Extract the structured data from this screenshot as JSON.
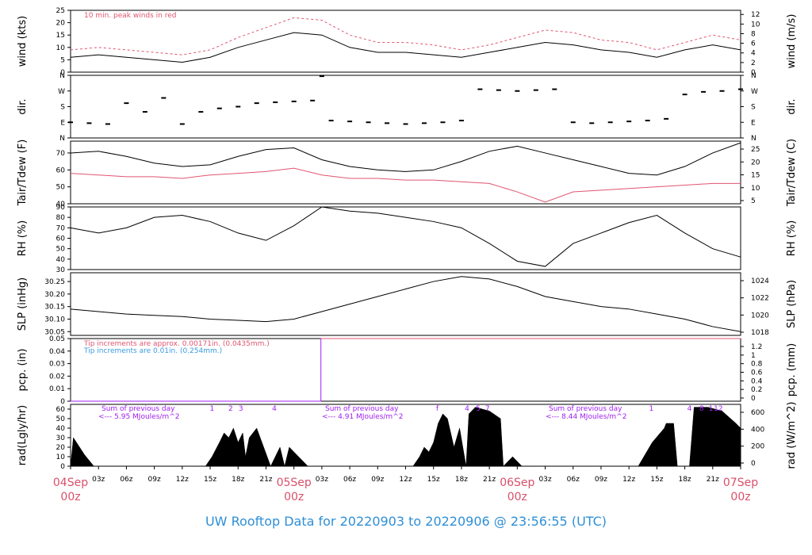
{
  "title": "UW Rooftop Data for 20220903  to  20220906 @ 23:56:55  (UTC)",
  "colors": {
    "red": "#e05570",
    "blue": "#3a9be0",
    "purple": "#a020f0",
    "date": "#d9506a",
    "footer": "#2e8fd6"
  },
  "x_axis": {
    "hour_ticks": [
      "03z",
      "06z",
      "09z",
      "12z",
      "15z",
      "18z",
      "21z",
      "03z",
      "06z",
      "09z",
      "12z",
      "15z",
      "18z",
      "21z",
      "03z",
      "06z",
      "09z",
      "12z",
      "15z",
      "18z",
      "21z"
    ],
    "date_labels": [
      {
        "date": "04Sep",
        "hour": "00z"
      },
      {
        "date": "05Sep",
        "hour": "00z"
      },
      {
        "date": "06Sep",
        "hour": "00z"
      },
      {
        "date": "07Sep",
        "hour": "00z"
      }
    ]
  },
  "chart_data": [
    {
      "type": "line",
      "key": "wind",
      "ylabel": "wind (kts)",
      "ylabel2": "wind (m/s)",
      "ylim": [
        0,
        25
      ],
      "yticks": [
        0,
        5,
        10,
        15,
        20,
        25
      ],
      "y2lim": [
        0,
        12.86
      ],
      "y2ticks": [
        0,
        2,
        4,
        6,
        8,
        10,
        12
      ],
      "annotations": [
        "10 min. peak winds in red"
      ],
      "series": [
        {
          "color": "#000",
          "x": [
            0,
            3,
            6,
            9,
            12,
            15,
            18,
            21,
            24,
            27,
            30,
            33,
            36,
            39,
            42,
            45,
            48,
            51,
            54,
            57,
            60,
            63,
            66,
            69,
            72
          ],
          "values": [
            6,
            7,
            6,
            5,
            4,
            6,
            10,
            13,
            16,
            15,
            10,
            8,
            8,
            7,
            6,
            8,
            10,
            12,
            11,
            9,
            8,
            6,
            9,
            11,
            9
          ]
        },
        {
          "color": "#e05570",
          "dashed": true,
          "x": [
            0,
            3,
            6,
            9,
            12,
            15,
            18,
            21,
            24,
            27,
            30,
            33,
            36,
            39,
            42,
            45,
            48,
            51,
            54,
            57,
            60,
            63,
            66,
            69,
            72
          ],
          "values": [
            9,
            10,
            9,
            8,
            7,
            9,
            14,
            18,
            22,
            21,
            15,
            12,
            12,
            11,
            9,
            11,
            14,
            17,
            16,
            13,
            12,
            9,
            12,
            15,
            13
          ]
        }
      ]
    },
    {
      "type": "scatter",
      "key": "dir",
      "ylabel": "dir.",
      "ylabel2": "dir.",
      "ylim": [
        0,
        360
      ],
      "ytick_values": [
        0,
        90,
        180,
        270,
        360
      ],
      "ytick_labels": [
        "N",
        "E",
        "S",
        "W",
        "N"
      ],
      "series": [
        {
          "color": "#000",
          "x": [
            0,
            2,
            4,
            6,
            8,
            10,
            12,
            14,
            16,
            18,
            20,
            22,
            24,
            26,
            27,
            28,
            30,
            32,
            34,
            36,
            38,
            40,
            42,
            44,
            46,
            48,
            50,
            52,
            54,
            56,
            58,
            60,
            62,
            64,
            66,
            68,
            70,
            72
          ],
          "values": [
            90,
            85,
            80,
            200,
            150,
            230,
            80,
            150,
            170,
            180,
            200,
            205,
            210,
            215,
            355,
            100,
            95,
            90,
            85,
            80,
            85,
            90,
            100,
            280,
            275,
            270,
            275,
            280,
            90,
            85,
            90,
            95,
            100,
            110,
            250,
            265,
            270,
            280
          ]
        }
      ]
    },
    {
      "type": "line",
      "key": "temp",
      "ylabel": "Tair/Tdew (F)",
      "ylabel2": "Tair/Tdew (C)",
      "ylim": [
        40,
        77
      ],
      "yticks": [
        40,
        50,
        60,
        70
      ],
      "y2ticks": [
        5,
        10,
        15,
        20,
        25
      ],
      "series": [
        {
          "color": "#000",
          "x": [
            0,
            3,
            6,
            9,
            12,
            15,
            18,
            21,
            24,
            27,
            30,
            33,
            36,
            39,
            42,
            45,
            48,
            51,
            54,
            57,
            60,
            63,
            66,
            69,
            72
          ],
          "values": [
            70,
            71,
            68,
            64,
            62,
            63,
            68,
            72,
            73,
            66,
            62,
            60,
            59,
            60,
            65,
            71,
            74,
            70,
            66,
            62,
            58,
            57,
            62,
            70,
            76
          ]
        },
        {
          "color": "#e05570",
          "x": [
            0,
            3,
            6,
            9,
            12,
            15,
            18,
            21,
            24,
            27,
            30,
            33,
            36,
            39,
            42,
            45,
            48,
            51,
            54,
            57,
            60,
            63,
            66,
            69,
            72
          ],
          "values": [
            58,
            57,
            56,
            56,
            55,
            57,
            58,
            59,
            61,
            57,
            55,
            55,
            54,
            54,
            53,
            52,
            47,
            41,
            47,
            48,
            49,
            50,
            51,
            52,
            52
          ]
        }
      ]
    },
    {
      "type": "line",
      "key": "rh",
      "ylabel": "RH (%)",
      "ylabel2": "RH (%)",
      "ylim": [
        30,
        90
      ],
      "yticks": [
        30,
        40,
        50,
        60,
        70,
        80,
        90
      ],
      "series": [
        {
          "color": "#000",
          "x": [
            0,
            3,
            6,
            9,
            12,
            15,
            18,
            21,
            24,
            27,
            30,
            33,
            36,
            39,
            42,
            45,
            48,
            51,
            54,
            57,
            60,
            63,
            66,
            69,
            72
          ],
          "values": [
            70,
            65,
            70,
            80,
            82,
            76,
            65,
            58,
            72,
            90,
            86,
            84,
            80,
            76,
            70,
            55,
            38,
            33,
            55,
            65,
            75,
            82,
            65,
            50,
            42
          ]
        }
      ]
    },
    {
      "type": "line",
      "key": "slp",
      "ylabel": "SLP (inHg)",
      "ylabel2": "SLP (hPa)",
      "ylim": [
        30.035,
        30.285
      ],
      "yticks": [
        30.05,
        30.1,
        30.15,
        30.2,
        30.25
      ],
      "y2ticks": [
        1018,
        1020,
        1022,
        1024
      ],
      "series": [
        {
          "color": "#000",
          "x": [
            0,
            3,
            6,
            9,
            12,
            15,
            18,
            21,
            24,
            27,
            30,
            33,
            36,
            39,
            42,
            45,
            48,
            51,
            54,
            57,
            60,
            63,
            66,
            69,
            72
          ],
          "values": [
            30.14,
            30.13,
            30.12,
            30.115,
            30.11,
            30.1,
            30.095,
            30.09,
            30.1,
            30.13,
            30.16,
            30.19,
            30.22,
            30.25,
            30.27,
            30.26,
            30.23,
            30.19,
            30.17,
            30.15,
            30.14,
            30.12,
            30.1,
            30.07,
            30.05
          ]
        }
      ]
    },
    {
      "type": "line",
      "key": "pcp",
      "ylabel": "pcp. (in)",
      "ylabel2": "pcp. (mm)",
      "ylim": [
        0,
        0.05
      ],
      "yticks": [
        0,
        0.01,
        0.02,
        0.03,
        0.04,
        0.05
      ],
      "y2ticks": [
        0,
        0.2,
        0.4,
        0.6,
        0.8,
        1.0,
        1.2
      ],
      "annotations": [
        "Tip increments are approx. 0.00171in. (0.0435mm.)",
        "Tip increments are 0.01in. (0.254mm.)"
      ],
      "series": [
        {
          "color": "#a020f0",
          "x": [
            0,
            26.9,
            26.9,
            72
          ],
          "values": [
            0,
            0,
            0.05,
            0.05
          ]
        },
        {
          "color": "#e05570",
          "x": [
            26.9,
            72
          ],
          "values": [
            0.05,
            0.05
          ]
        }
      ]
    },
    {
      "type": "area",
      "key": "rad",
      "ylabel": "rad(Lgly/hr)",
      "ylabel2": "rad (W/m^2)",
      "ylim": [
        0,
        65
      ],
      "yticks": [
        0,
        10,
        20,
        30,
        40,
        50,
        60
      ],
      "y2ticks": [
        0,
        200,
        400,
        600
      ],
      "day_notes": [
        {
          "line1": "Sum of previous day",
          "line2": "<--- 5.95 MJoules/m^2"
        },
        {
          "line1": "Sum of previous day",
          "line2": "<--- 4.91 MJoules/m^2"
        },
        {
          "line1": "Sum of previous day",
          "line2": "<--- 8.44 MJoules/m^2"
        }
      ],
      "markers": [
        {
          "x": 15.2,
          "label": "1"
        },
        {
          "x": 17.2,
          "label": "2"
        },
        {
          "x": 18.3,
          "label": "3"
        },
        {
          "x": 21.9,
          "label": "4"
        },
        {
          "x": 39.4,
          "label": "f"
        },
        {
          "x": 42.6,
          "label": "4"
        },
        {
          "x": 43.8,
          "label": "5"
        },
        {
          "x": 44.8,
          "label": "7"
        },
        {
          "x": 62.4,
          "label": "1"
        },
        {
          "x": 66.5,
          "label": "4"
        },
        {
          "x": 67.8,
          "label": "8"
        },
        {
          "x": 68.8,
          "label": "1"
        },
        {
          "x": 69.6,
          "label": "12"
        }
      ],
      "series": [
        {
          "color": "#000",
          "x": [
            0,
            0.3,
            1.5,
            2.5,
            14.5,
            15.2,
            16.0,
            16.5,
            17.0,
            17.5,
            18.0,
            18.5,
            18.8,
            19.2,
            20.0,
            21.5,
            22.5,
            23.0,
            23.5,
            24.5,
            25.5,
            36.8,
            37.5,
            38.0,
            38.5,
            39.0,
            39.5,
            40.0,
            40.5,
            41.2,
            41.8,
            42.5,
            42.8,
            43.5,
            45.0,
            46.2,
            46.5,
            47.5,
            48.5,
            61.0,
            62.5,
            63.8,
            64.0,
            64.8,
            65.2,
            66.5,
            67.0,
            68.5,
            70.0,
            71.5,
            72
          ],
          "values": [
            0,
            30,
            12,
            0,
            0,
            10,
            25,
            35,
            30,
            40,
            25,
            35,
            10,
            30,
            40,
            0,
            20,
            0,
            20,
            10,
            0,
            0,
            10,
            20,
            15,
            25,
            45,
            55,
            50,
            20,
            40,
            0,
            55,
            62,
            58,
            50,
            0,
            10,
            0,
            0,
            25,
            40,
            45,
            45,
            0,
            0,
            62,
            62,
            58,
            45,
            40
          ]
        }
      ]
    }
  ]
}
